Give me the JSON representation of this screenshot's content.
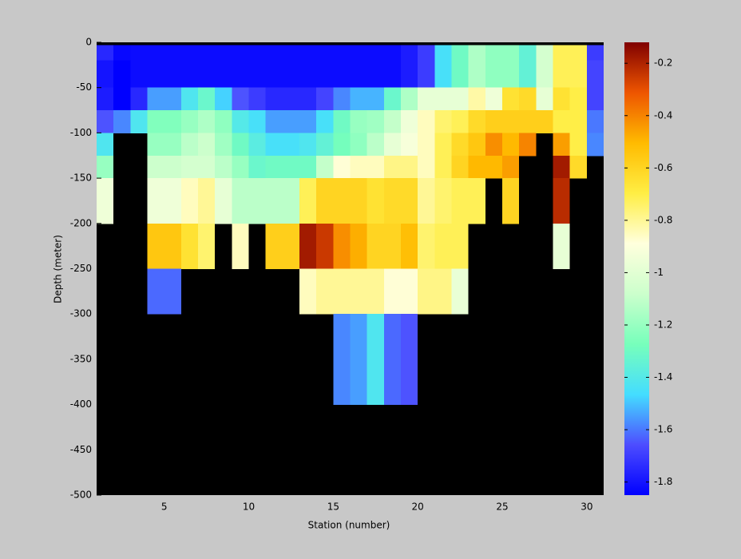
{
  "chart_data": {
    "type": "heatmap",
    "xlabel": "Station (number)",
    "ylabel": "Depth (meter)",
    "background": "#000000",
    "x_edges": [
      1,
      2,
      3,
      4,
      5,
      6,
      7,
      8,
      9,
      10,
      11,
      12,
      13,
      14,
      15,
      16,
      17,
      18,
      19,
      20,
      21,
      22,
      23,
      24,
      25,
      26,
      27,
      28,
      29,
      30,
      31
    ],
    "y_edges": [
      -3,
      -20,
      -50,
      -75,
      -100,
      -125,
      -150,
      -200,
      -250,
      -300,
      -400
    ],
    "values": [
      [
        -1.75,
        -1.83,
        -1.82,
        -1.82,
        -1.82,
        -1.82,
        -1.82,
        -1.82,
        -1.82,
        -1.82,
        -1.82,
        -1.82,
        -1.82,
        -1.82,
        -1.82,
        -1.82,
        -1.82,
        -1.82,
        -1.78,
        -1.7,
        -1.45,
        -1.3,
        -1.15,
        -1.22,
        -1.22,
        -1.35,
        -1.05,
        -0.72,
        -0.72,
        -1.7
      ],
      [
        -1.8,
        -1.85,
        -1.82,
        -1.82,
        -1.82,
        -1.82,
        -1.82,
        -1.82,
        -1.82,
        -1.82,
        -1.82,
        -1.82,
        -1.82,
        -1.82,
        -1.82,
        -1.82,
        -1.82,
        -1.82,
        -1.78,
        -1.7,
        -1.45,
        -1.3,
        -1.15,
        -1.22,
        -1.22,
        -1.35,
        -1.05,
        -0.72,
        -0.72,
        -1.68
      ],
      [
        -1.78,
        -1.85,
        -1.75,
        -1.55,
        -1.55,
        -1.42,
        -1.32,
        -1.48,
        -1.65,
        -1.7,
        -1.75,
        -1.75,
        -1.75,
        -1.68,
        -1.58,
        -1.52,
        -1.52,
        -1.32,
        -1.15,
        -0.98,
        -0.98,
        -0.98,
        -0.82,
        -0.95,
        -0.65,
        -0.62,
        -0.98,
        -0.65,
        -0.7,
        -1.68
      ],
      [
        -1.65,
        -1.58,
        -1.42,
        -1.25,
        -1.25,
        -1.2,
        -1.15,
        -1.22,
        -1.4,
        -1.45,
        -1.55,
        -1.55,
        -1.55,
        -1.45,
        -1.3,
        -1.2,
        -1.18,
        -1.1,
        -0.95,
        -0.85,
        -0.75,
        -0.72,
        -0.62,
        -0.58,
        -0.58,
        -0.58,
        -0.58,
        -0.7,
        -0.7,
        -1.6
      ],
      [
        -1.42,
        null,
        null,
        -1.2,
        -1.2,
        -1.12,
        -1.08,
        -1.18,
        -1.3,
        -1.38,
        -1.45,
        -1.45,
        -1.42,
        -1.35,
        -1.28,
        -1.22,
        -1.12,
        -0.98,
        -0.92,
        -0.85,
        -0.72,
        -0.62,
        -0.55,
        -0.42,
        -0.5,
        -0.4,
        null,
        -0.45,
        -0.7,
        -1.58
      ],
      [
        -1.2,
        null,
        null,
        -1.08,
        -1.08,
        -1.05,
        -1.05,
        -1.12,
        -1.2,
        -1.32,
        -1.3,
        -1.3,
        -1.3,
        -1.1,
        -0.88,
        -0.85,
        -0.85,
        -0.78,
        -0.78,
        -0.85,
        -0.72,
        -0.6,
        -0.5,
        -0.5,
        -0.45,
        null,
        null,
        -0.18,
        -0.62,
        null
      ],
      [
        -0.95,
        null,
        null,
        -0.95,
        -0.95,
        -0.85,
        -0.8,
        -0.98,
        -1.12,
        -1.12,
        -1.12,
        -1.12,
        -0.72,
        -0.6,
        -0.6,
        -0.6,
        -0.65,
        -0.62,
        -0.62,
        -0.8,
        -0.75,
        -0.72,
        -0.72,
        null,
        -0.6,
        null,
        null,
        -0.22,
        null,
        null
      ],
      [
        null,
        null,
        null,
        -0.55,
        -0.55,
        -0.65,
        -0.75,
        null,
        -0.85,
        null,
        -0.58,
        -0.58,
        -0.18,
        -0.25,
        -0.42,
        -0.48,
        -0.6,
        -0.6,
        -0.52,
        -0.75,
        -0.72,
        -0.72,
        null,
        null,
        null,
        null,
        null,
        -0.98,
        null,
        null
      ],
      [
        null,
        null,
        null,
        -1.62,
        -1.62,
        null,
        null,
        null,
        null,
        null,
        null,
        null,
        -0.85,
        -0.8,
        -0.8,
        -0.8,
        -0.8,
        -0.88,
        -0.88,
        -0.78,
        -0.78,
        -0.97,
        null,
        null,
        null,
        null,
        null,
        null,
        null,
        null
      ],
      [
        null,
        null,
        null,
        null,
        null,
        null,
        null,
        null,
        null,
        null,
        null,
        null,
        null,
        null,
        -1.58,
        -1.55,
        -1.42,
        -1.62,
        -1.65,
        null,
        null,
        null,
        null,
        null,
        null,
        null,
        null,
        null,
        null,
        null
      ]
    ],
    "xlim": [
      1,
      31
    ],
    "ylim": [
      -500,
      0
    ],
    "xticks": [
      5,
      10,
      15,
      20,
      25,
      30
    ],
    "yticks": [
      0,
      -50,
      -100,
      -150,
      -200,
      -250,
      -300,
      -350,
      -400,
      -450,
      -500
    ],
    "clim": [
      -1.85,
      -0.12
    ],
    "cticks": [
      -1.8,
      -1.6,
      -1.4,
      -1.2,
      -1,
      -0.8,
      -0.6,
      -0.4,
      -0.2
    ],
    "colormap": [
      "#0000ff",
      "#4d4dff",
      "#44ddff",
      "#77ffbb",
      "#ccffcc",
      "#ffffdd",
      "#ffee44",
      "#ffbb00",
      "#ee5500",
      "#800000"
    ]
  }
}
